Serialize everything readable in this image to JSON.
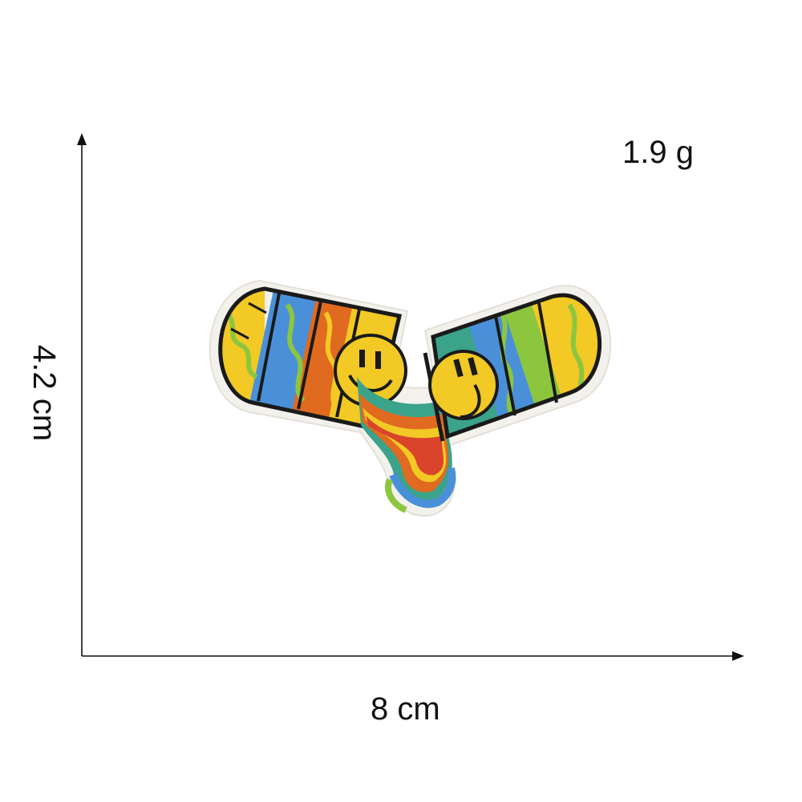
{
  "product": {
    "weight_label": "1.9 g",
    "height_label": "4.2 cm",
    "width_label": "8 cm"
  },
  "colors": {
    "outline": "#1a1a1a",
    "patch_border": "#f3f1ec",
    "yellow": "#f2c925",
    "lime": "#8cc63f",
    "blue": "#4a90d9",
    "orange": "#e06a1f",
    "teal": "#3aa38a",
    "green": "#5fae3a",
    "red": "#d9442a"
  },
  "illustration": {
    "subject": "embroidered-patch-capsules-pouring-rainbow",
    "icons": [
      "left-capsule-icon",
      "right-capsule-icon",
      "smiley-face-icon",
      "rainbow-stream-icon"
    ]
  }
}
